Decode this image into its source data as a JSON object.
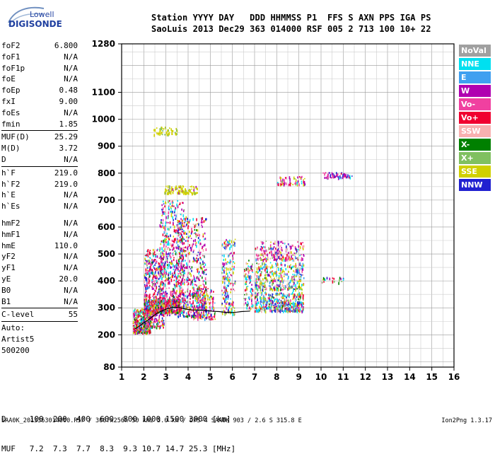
{
  "logo": {
    "line1": "Lowell",
    "line2": "DIGISONDE"
  },
  "header": {
    "line1": "Station YYYY DAY   DDD HHMMSS P1  FFS S AXN PPS IGA PS",
    "line2": "SaoLuis 2013 Dec29 363 014000 RSF 005 2 713 100 10+ 22"
  },
  "params": {
    "group1": [
      {
        "label": "foF2",
        "value": "6.800"
      },
      {
        "label": "foF1",
        "value": "N/A"
      },
      {
        "label": "foF1p",
        "value": "N/A"
      },
      {
        "label": "foE",
        "value": "N/A"
      },
      {
        "label": "foEp",
        "value": "0.48"
      },
      {
        "label": "fxI",
        "value": "9.00"
      },
      {
        "label": "foEs",
        "value": "N/A"
      },
      {
        "label": "fmin",
        "value": "1.85"
      }
    ],
    "group2": [
      {
        "label": "MUF(D)",
        "value": "25.29"
      },
      {
        "label": "M(D)",
        "value": "3.72"
      },
      {
        "label": "D",
        "value": "N/A"
      }
    ],
    "group3": [
      {
        "label": "h`F",
        "value": "219.0"
      },
      {
        "label": "h`F2",
        "value": "219.0"
      },
      {
        "label": "h`E",
        "value": "N/A"
      },
      {
        "label": "h`Es",
        "value": "N/A"
      }
    ],
    "group4": [
      {
        "label": "hmF2",
        "value": "N/A"
      },
      {
        "label": "hmF1",
        "value": "N/A"
      },
      {
        "label": "hmE",
        "value": "110.0"
      },
      {
        "label": "yF2",
        "value": "N/A"
      },
      {
        "label": "yF1",
        "value": "N/A"
      },
      {
        "label": "yE",
        "value": "20.0"
      },
      {
        "label": "B0",
        "value": "N/A"
      },
      {
        "label": "B1",
        "value": "N/A"
      }
    ],
    "clevel": {
      "label": "C-level",
      "value": "55"
    },
    "auto": [
      "Auto:",
      "Artist5",
      "500200"
    ]
  },
  "legend": [
    {
      "label": "NoVal",
      "color": "#a0a0a0"
    },
    {
      "label": "NNE",
      "color": "#00e0f0"
    },
    {
      "label": "E",
      "color": "#40a0f0"
    },
    {
      "label": "W",
      "color": "#b000b0"
    },
    {
      "label": "Vo-",
      "color": "#f040a0"
    },
    {
      "label": "Vo+",
      "color": "#f00030"
    },
    {
      "label": "SSW",
      "color": "#f8b0b0"
    },
    {
      "label": "X-",
      "color": "#008000"
    },
    {
      "label": "X+",
      "color": "#80c060"
    },
    {
      "label": "SSE",
      "color": "#d0d000"
    },
    {
      "label": "NNW",
      "color": "#2020d0"
    }
  ],
  "dmuf": {
    "d_line": "D     100  200  400  600  800 1000 1500 3000 [km]",
    "muf_line": "MUF   7.2  7.3  7.7  8.3  9.3 10.7 14.7 25.3 [MHz]"
  },
  "footer": "SAA0K_2013363014000.RSF / 300fx256h 50 kHz 5.0 km / DPS-4 SAA0K 903 / 2.6 S 315.8 E",
  "version": "Ion2Png 1.3.17",
  "chart_data": {
    "type": "scatter",
    "xlim": [
      1,
      16
    ],
    "ylim": [
      80,
      1280
    ],
    "x_ticks": [
      1,
      2,
      3,
      4,
      5,
      6,
      7,
      8,
      9,
      10,
      11,
      12,
      13,
      14,
      15,
      16
    ],
    "y_ticks": [
      80,
      200,
      300,
      400,
      500,
      600,
      700,
      800,
      900,
      1000,
      1100,
      1280
    ],
    "trace": {
      "x": [
        1.6,
        1.8,
        2.0,
        2.2,
        2.4,
        2.6,
        2.8,
        3.0,
        3.2,
        3.4,
        3.6,
        3.8,
        4.0,
        4.2,
        4.4,
        4.6,
        4.8,
        5.0,
        5.2,
        5.4,
        5.6,
        5.8,
        6.0,
        6.2,
        6.4,
        6.6,
        6.8
      ],
      "y": [
        222,
        232,
        245,
        255,
        268,
        280,
        288,
        295,
        300,
        302,
        301,
        297,
        294,
        292,
        292,
        291,
        290,
        288,
        287,
        286,
        284,
        283,
        283,
        284,
        286,
        287,
        288
      ]
    },
    "clusters": [
      {
        "x": [
          1.5,
          2.3
        ],
        "y": [
          210,
          300
        ],
        "n": 350,
        "weights": [
          0,
          2,
          1,
          2,
          3,
          6,
          0,
          2,
          3,
          2,
          1
        ]
      },
      {
        "x": [
          2.0,
          2.9
        ],
        "y": [
          230,
          520
        ],
        "n": 500,
        "weights": [
          0,
          2,
          1,
          3,
          3,
          5,
          1,
          1,
          2,
          2,
          2
        ]
      },
      {
        "x": [
          2.7,
          3.8
        ],
        "y": [
          280,
          700
        ],
        "n": 600,
        "weights": [
          0,
          2,
          1,
          4,
          3,
          4,
          1,
          1,
          1,
          2,
          2
        ]
      },
      {
        "x": [
          3.5,
          4.8
        ],
        "y": [
          270,
          640
        ],
        "n": 520,
        "weights": [
          0,
          2,
          1,
          4,
          3,
          4,
          1,
          1,
          1,
          2,
          2
        ]
      },
      {
        "x": [
          2.0,
          3.6
        ],
        "y": [
          285,
          335
        ],
        "n": 420,
        "weights": [
          0,
          1,
          1,
          2,
          4,
          7,
          0,
          2,
          2,
          3,
          1
        ]
      },
      {
        "x": [
          4.2,
          5.2
        ],
        "y": [
          260,
          380
        ],
        "n": 200,
        "weights": [
          0,
          1,
          1,
          2,
          3,
          3,
          1,
          1,
          1,
          5,
          1
        ]
      },
      {
        "x": [
          5.5,
          6.1
        ],
        "y": [
          280,
          560
        ],
        "n": 220,
        "weights": [
          0,
          3,
          2,
          2,
          2,
          1,
          1,
          0,
          1,
          4,
          1
        ]
      },
      {
        "x": [
          6.5,
          6.9
        ],
        "y": [
          300,
          480
        ],
        "n": 100,
        "weights": [
          0,
          2,
          1,
          2,
          1,
          1,
          1,
          1,
          1,
          2,
          1
        ]
      },
      {
        "x": [
          7.0,
          9.2
        ],
        "y": [
          290,
          360
        ],
        "n": 420,
        "weights": [
          0,
          5,
          4,
          1,
          2,
          3,
          1,
          1,
          2,
          3,
          3
        ]
      },
      {
        "x": [
          7.0,
          9.2
        ],
        "y": [
          370,
          470
        ],
        "n": 380,
        "weights": [
          0,
          3,
          3,
          1,
          2,
          1,
          2,
          1,
          2,
          6,
          2
        ]
      },
      {
        "x": [
          7.0,
          9.2
        ],
        "y": [
          480,
          550
        ],
        "n": 220,
        "weights": [
          0,
          1,
          1,
          4,
          5,
          3,
          5,
          0,
          1,
          2,
          1
        ]
      },
      {
        "x": [
          2.9,
          4.4
        ],
        "y": [
          728,
          756
        ],
        "n": 120,
        "weights": [
          0,
          0,
          0,
          1,
          0,
          0,
          0,
          0,
          1,
          9,
          0
        ]
      },
      {
        "x": [
          2.4,
          3.5
        ],
        "y": [
          945,
          975
        ],
        "n": 50,
        "weights": [
          0,
          0,
          0,
          0,
          0,
          0,
          0,
          0,
          2,
          9,
          0
        ]
      },
      {
        "x": [
          8.0,
          9.3
        ],
        "y": [
          760,
          790
        ],
        "n": 60,
        "weights": [
          0,
          1,
          0,
          3,
          4,
          2,
          1,
          0,
          1,
          3,
          1
        ]
      },
      {
        "x": [
          10.0,
          11.4
        ],
        "y": [
          785,
          805
        ],
        "n": 60,
        "weights": [
          0,
          1,
          1,
          6,
          3,
          1,
          0,
          0,
          0,
          1,
          4
        ]
      },
      {
        "x": [
          10.0,
          11.0
        ],
        "y": [
          395,
          420
        ],
        "n": 20,
        "weights": [
          0,
          1,
          0,
          1,
          1,
          3,
          0,
          1,
          1,
          1,
          1
        ]
      }
    ]
  }
}
